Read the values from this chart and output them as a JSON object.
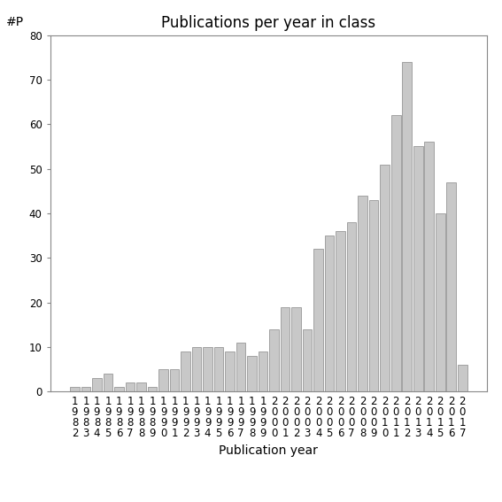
{
  "title": "Publications per year in class",
  "xlabel": "Publication year",
  "ylabel": "#P",
  "years": [
    1982,
    1983,
    1984,
    1985,
    1986,
    1987,
    1988,
    1989,
    1990,
    1991,
    1992,
    1993,
    1994,
    1995,
    1996,
    1997,
    1998,
    1999,
    2000,
    2001,
    2002,
    2003,
    2004,
    2005,
    2006,
    2007,
    2008,
    2009,
    2010,
    2011,
    2012,
    2013,
    2014,
    2015,
    2016,
    2017
  ],
  "values": [
    1,
    1,
    3,
    4,
    1,
    2,
    2,
    1,
    5,
    5,
    9,
    10,
    10,
    10,
    9,
    11,
    8,
    9,
    14,
    19,
    19,
    14,
    32,
    35,
    36,
    38,
    44,
    43,
    51,
    62,
    74,
    55,
    56,
    40,
    47,
    6
  ],
  "bar_color": "#c8c8c8",
  "bar_edge_color": "#888888",
  "ylim": [
    0,
    80
  ],
  "yticks": [
    0,
    10,
    20,
    30,
    40,
    50,
    60,
    70,
    80
  ],
  "background_color": "#ffffff",
  "title_fontsize": 12,
  "axis_label_fontsize": 10,
  "tick_fontsize": 8.5
}
